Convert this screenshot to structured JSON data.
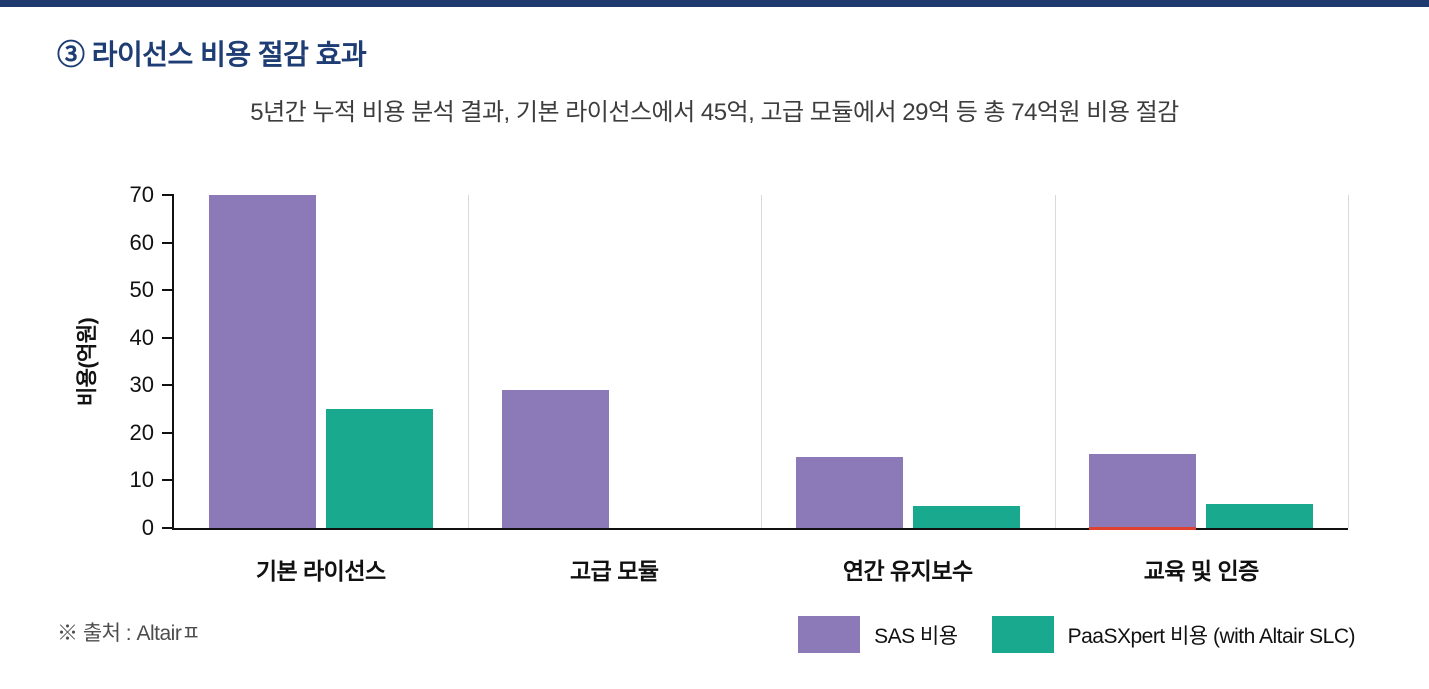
{
  "page": {
    "title": "③ 라이선스 비용 절감 효과",
    "subtitle": "5년간 누적 비용 분석 결과, 기본 라이선스에서 45억, 고급 모듈에서 29억 등 총 74억원 비용 절감",
    "source": "※ 출처 : Altairㅍ"
  },
  "colors": {
    "top_strip_navy": "#1e3a6e",
    "title_navy": "#1f3d75",
    "sas_purple": "#8c79b8",
    "paasxpert_teal": "#19a98f",
    "gridline_gray": "#d9d9d9"
  },
  "chart_data": {
    "type": "bar",
    "categories": [
      "기본 라이선스",
      "고급 모듈",
      "연간 유지보수",
      "교육 및 인증"
    ],
    "series": [
      {
        "name": "SAS 비용",
        "color": "#8c79b8",
        "values": [
          70,
          29,
          15,
          15.5
        ]
      },
      {
        "name": "PaaSXpert 비용 (with Altair SLC)",
        "color": "#19a98f",
        "values": [
          25,
          0,
          4.7,
          5
        ]
      }
    ],
    "ylabel": "비용(억원)",
    "xlabel": "",
    "ylim": [
      0,
      70
    ],
    "yticks": [
      0,
      10,
      20,
      30,
      40,
      50,
      60,
      70
    ],
    "grid": "vertical-category-dividers",
    "legend_position": "bottom-right",
    "annotations": [
      {
        "type": "baseline-highlight",
        "series_index": 0,
        "category_index": 3,
        "color": "#e0402f"
      }
    ]
  }
}
